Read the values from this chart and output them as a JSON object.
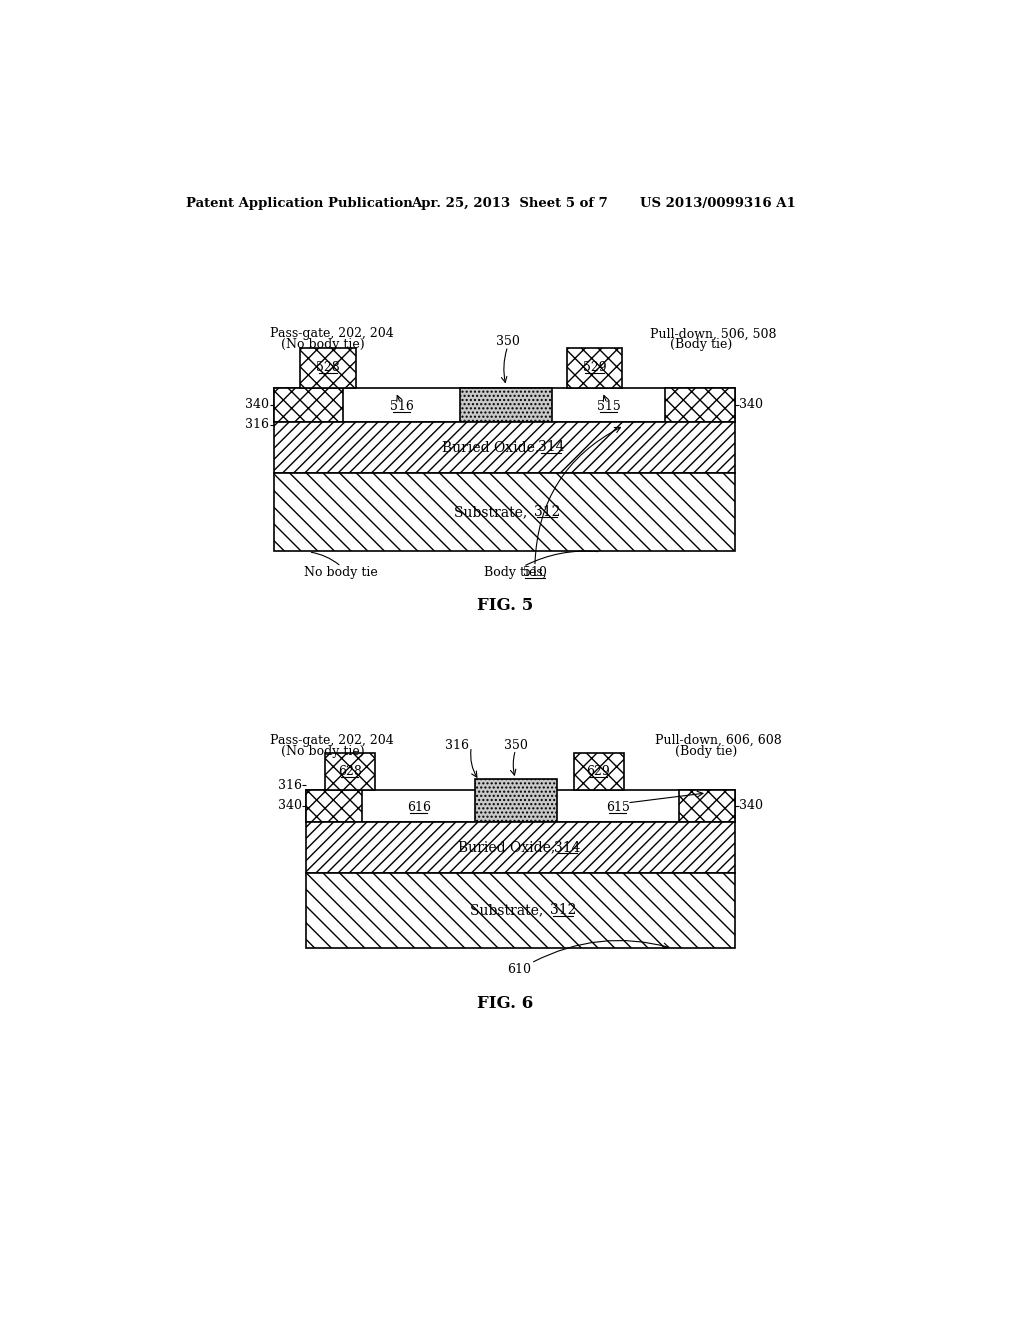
{
  "header_left": "Patent Application Publication",
  "header_center": "Apr. 25, 2013  Sheet 5 of 7",
  "header_right": "US 2013/0099316 A1",
  "fig5_label": "FIG. 5",
  "fig6_label": "FIG. 6",
  "bg_color": "#ffffff",
  "line_color": "#000000"
}
